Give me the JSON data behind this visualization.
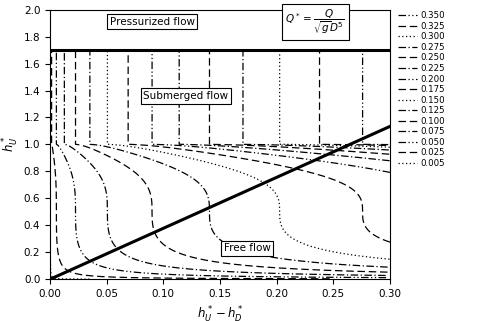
{
  "xlabel": "$h_U^*-h_D^*$",
  "ylabel": "$h_U^*$",
  "xlim": [
    0,
    0.3
  ],
  "ylim": [
    0,
    2.0
  ],
  "pressurized_line_y": 1.7,
  "free_flow_slope": 3.78,
  "Q_values": [
    0.35,
    0.325,
    0.3,
    0.275,
    0.25,
    0.225,
    0.2,
    0.175,
    0.15,
    0.125,
    0.1,
    0.075,
    0.05,
    0.025,
    0.005
  ],
  "ls_map": {
    "0.350": [
      0,
      [
        6,
        2,
        1,
        2,
        1,
        2
      ]
    ],
    "0.325": [
      0,
      [
        6,
        3
      ]
    ],
    "0.300": [
      0,
      [
        1,
        2
      ]
    ],
    "0.275": [
      0,
      [
        6,
        2,
        1,
        2
      ]
    ],
    "0.250": [
      0,
      [
        6,
        3
      ]
    ],
    "0.225": [
      0,
      [
        6,
        2,
        1,
        2
      ]
    ],
    "0.200": [
      0,
      [
        6,
        2,
        1,
        2,
        1,
        2
      ]
    ],
    "0.175": [
      0,
      [
        6,
        3
      ]
    ],
    "0.150": [
      0,
      [
        1,
        2
      ]
    ],
    "0.125": [
      0,
      [
        6,
        2,
        1,
        2
      ]
    ],
    "0.100": [
      0,
      [
        6,
        3
      ]
    ],
    "0.075": [
      0,
      [
        6,
        2,
        1,
        2
      ]
    ],
    "0.050": [
      0,
      [
        6,
        2,
        1,
        2,
        1,
        2
      ]
    ],
    "0.025": [
      0,
      [
        6,
        3
      ]
    ],
    "0.005": [
      0,
      [
        1,
        2
      ]
    ]
  },
  "background_color": "#ffffff"
}
